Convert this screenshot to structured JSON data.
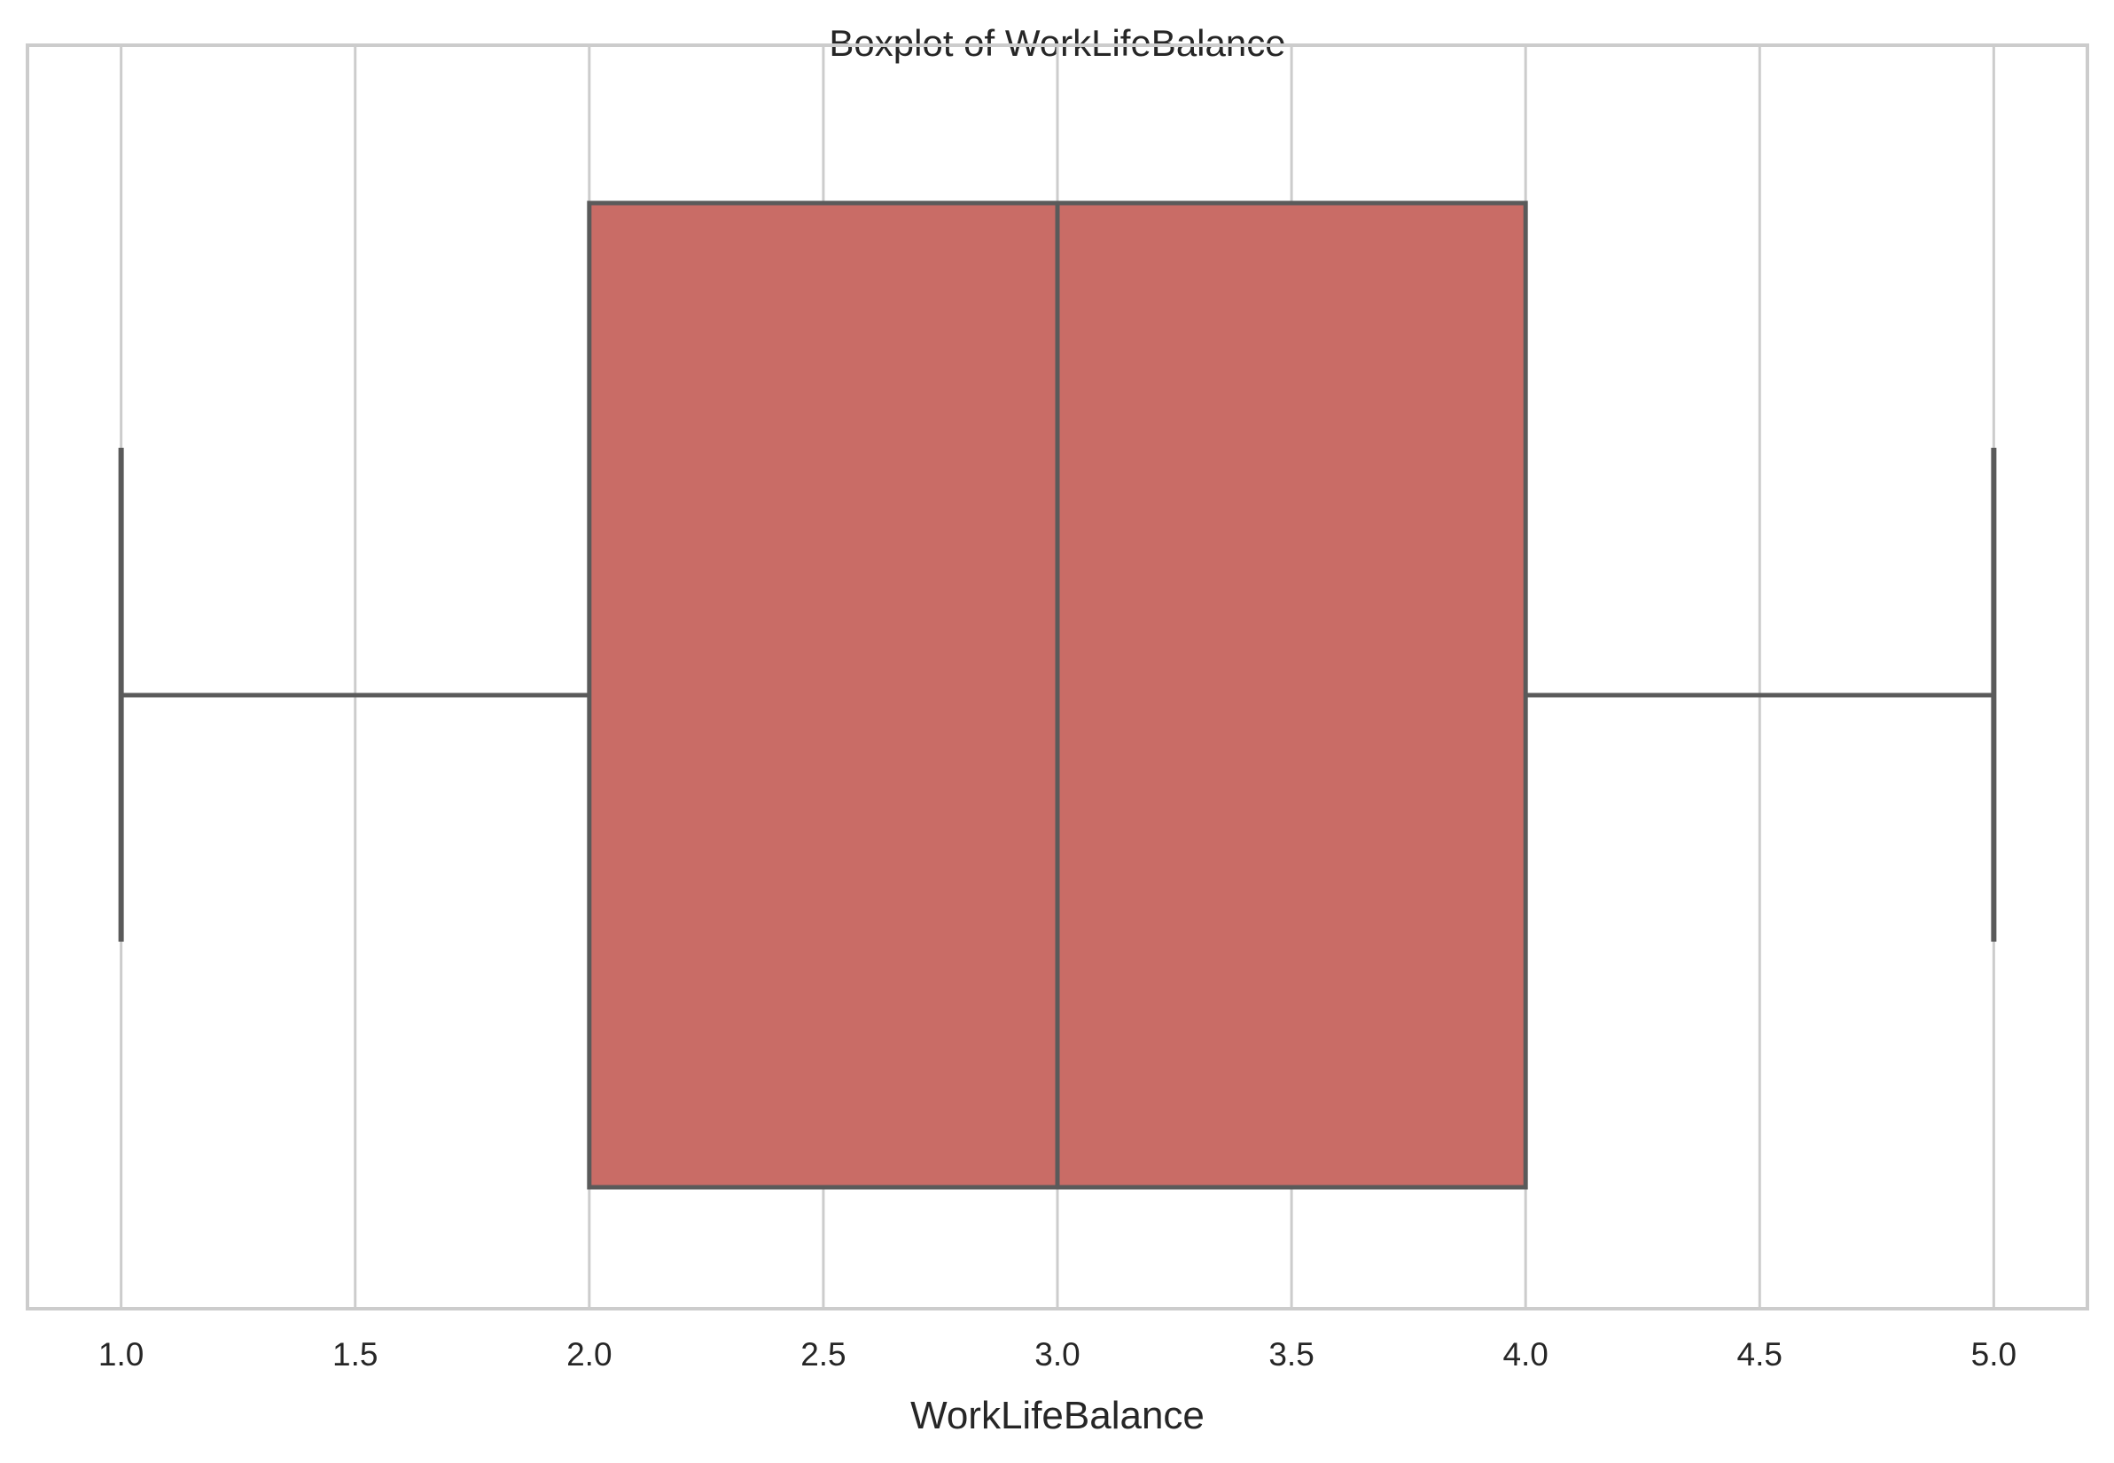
{
  "chart_data": {
    "type": "boxplot",
    "title": "Boxplot of WorkLifeBalance",
    "xlabel": "WorkLifeBalance",
    "ylabel": "",
    "orientation": "horizontal",
    "xlim": [
      0.8,
      5.2
    ],
    "x_ticks": [
      1.0,
      1.5,
      2.0,
      2.5,
      3.0,
      3.5,
      4.0,
      4.5,
      5.0
    ],
    "x_tick_labels": [
      "1.0",
      "1.5",
      "2.0",
      "2.5",
      "3.0",
      "3.5",
      "4.0",
      "4.5",
      "5.0"
    ],
    "grid": "vertical",
    "box": {
      "min": 1.0,
      "q1": 2.0,
      "median": 3.0,
      "q3": 4.0,
      "max": 5.0
    },
    "colors": {
      "box_fill": "#c96c66",
      "line": "#5a5a5a",
      "grid": "#cccccc",
      "frame": "#cccccc"
    }
  }
}
